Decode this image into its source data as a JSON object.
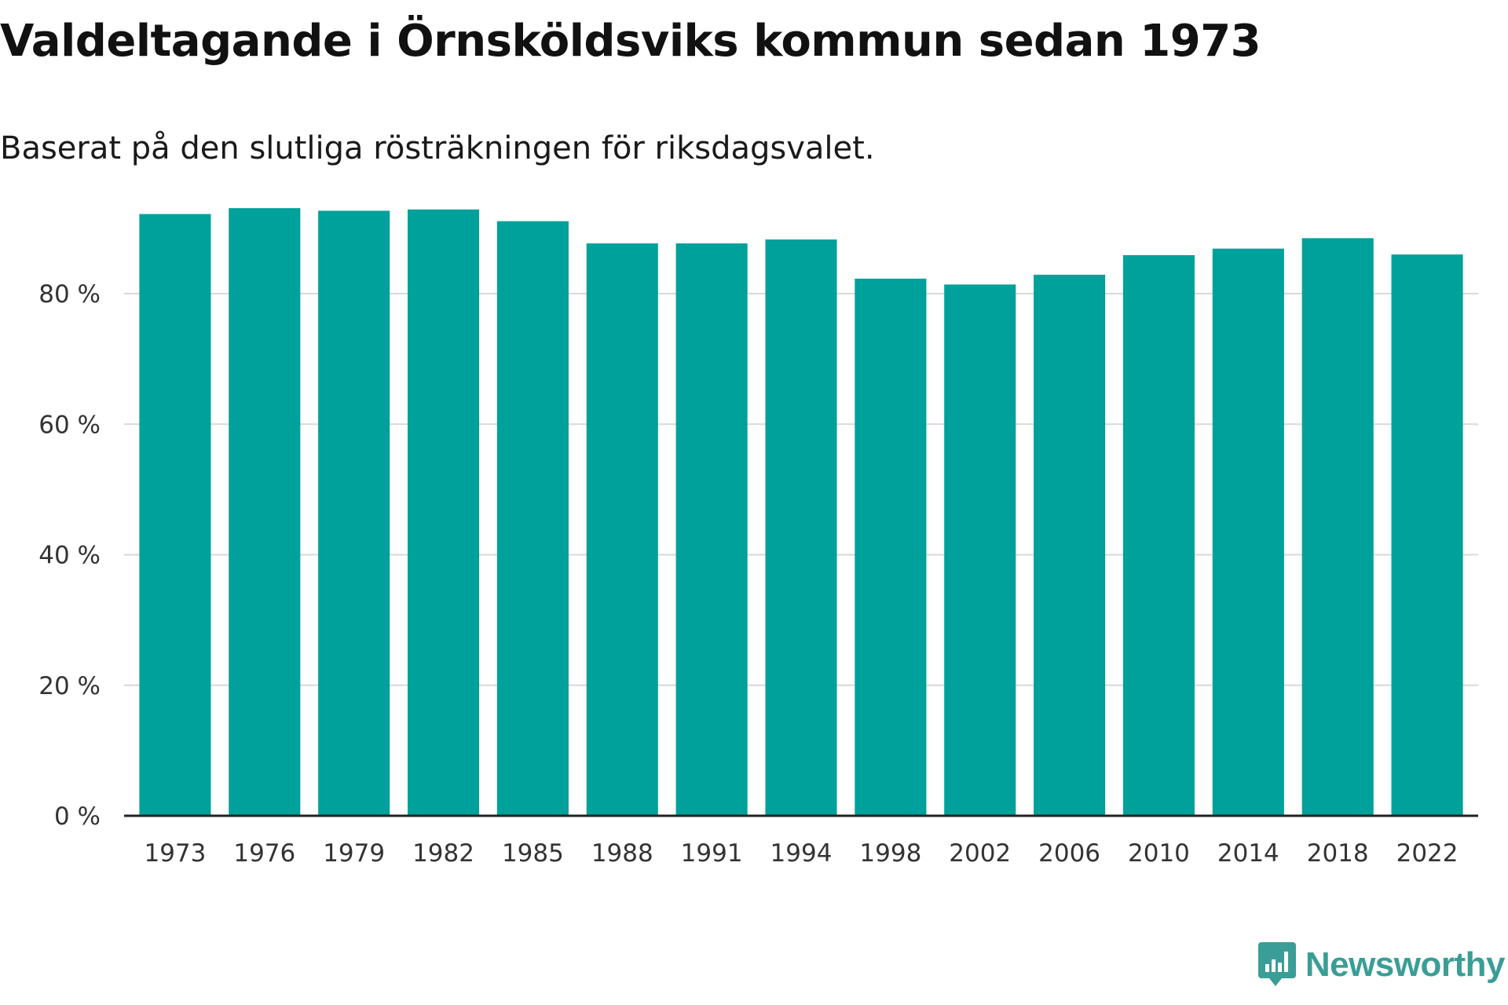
{
  "title": "Valdeltagande i Örnsköldsviks kommun sedan 1973",
  "subtitle": "Baserat på den slutliga rösträkningen för riksdagsvalet.",
  "brand": "Newsworthy",
  "colors": {
    "bar": "#00a19a",
    "grid": "#d9d9d9",
    "axis": "#222222",
    "brand": "#3a9e96"
  },
  "chart_data": {
    "type": "bar",
    "title": "Valdeltagande i Örnsköldsviks kommun sedan 1973",
    "subtitle": "Baserat på den slutliga rösträkningen för riksdagsvalet.",
    "xlabel": "",
    "ylabel": "",
    "ylim": [
      0,
      100
    ],
    "yticks": [
      0,
      20,
      40,
      60,
      80
    ],
    "ytick_labels": [
      "0 %",
      "20 %",
      "40 %",
      "60 %",
      "80 %"
    ],
    "grid": true,
    "categories": [
      "1973",
      "1976",
      "1979",
      "1982",
      "1985",
      "1988",
      "1991",
      "1994",
      "1998",
      "2002",
      "2006",
      "2010",
      "2014",
      "2018",
      "2022"
    ],
    "values": [
      92.2,
      93.1,
      92.7,
      92.9,
      91.1,
      87.7,
      87.7,
      88.3,
      82.3,
      81.4,
      82.9,
      85.9,
      86.9,
      88.5,
      86.0
    ]
  }
}
